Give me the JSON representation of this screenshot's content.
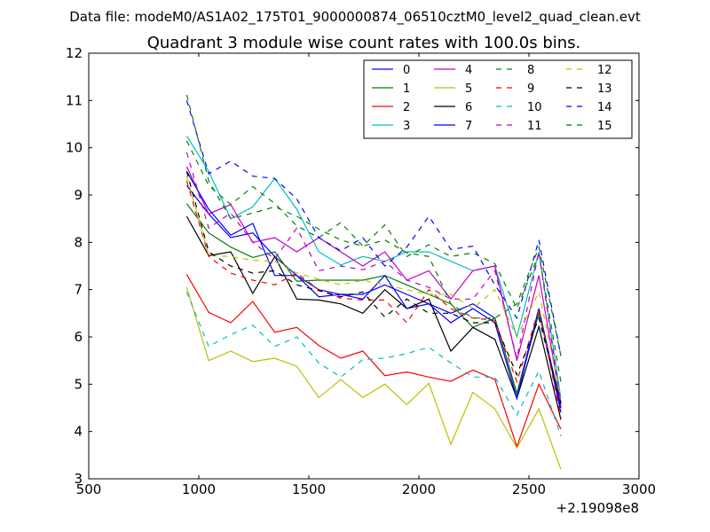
{
  "chart_data": {
    "type": "line",
    "suptitle": "Data file: modeM0/AS1A02_175T01_9000000874_06510cztM0_level2_quad_clean.evt",
    "title": "Quadrant 3 module wise count rates with 100.0s bins.",
    "xlabel": "",
    "ylabel": "",
    "x_offset_label": "+2.19098e8",
    "xlim": [
      500,
      3000
    ],
    "ylim": [
      3,
      12
    ],
    "xticks": [
      500,
      1000,
      1500,
      2000,
      2500,
      3000
    ],
    "yticks": [
      3,
      4,
      5,
      6,
      7,
      8,
      9,
      10,
      11,
      12
    ],
    "grid": false,
    "legend_position": "top-right",
    "x": [
      945,
      1045,
      1145,
      1245,
      1345,
      1445,
      1545,
      1645,
      1745,
      1845,
      1945,
      2045,
      2145,
      2245,
      2345,
      2445,
      2545,
      2645
    ],
    "series": [
      {
        "name": "0",
        "color": "#0000ff",
        "style": "solid",
        "values": [
          9.2,
          8.6,
          8.1,
          8.2,
          7.7,
          7.3,
          7.0,
          6.9,
          6.9,
          7.1,
          6.9,
          6.7,
          6.5,
          6.7,
          6.4,
          4.8,
          6.6,
          4.4
        ]
      },
      {
        "name": "1",
        "color": "#008000",
        "style": "solid",
        "values": [
          8.82,
          8.2,
          7.9,
          7.68,
          7.8,
          7.18,
          7.2,
          7.2,
          7.2,
          7.3,
          7.1,
          6.9,
          6.7,
          6.2,
          6.4,
          4.8,
          6.5,
          4.6
        ]
      },
      {
        "name": "2",
        "color": "#ff0000",
        "style": "solid",
        "values": [
          7.32,
          6.52,
          6.3,
          6.75,
          6.1,
          6.2,
          5.82,
          5.55,
          5.7,
          5.18,
          5.26,
          5.15,
          5.06,
          5.3,
          5.1,
          3.68,
          5.0,
          4.05
        ]
      },
      {
        "name": "3",
        "color": "#00bfbf",
        "style": "solid",
        "values": [
          10.25,
          9.5,
          8.5,
          8.75,
          9.35,
          8.7,
          7.8,
          7.52,
          7.7,
          7.6,
          7.8,
          7.8,
          7.6,
          7.4,
          7.5,
          6.0,
          7.8,
          4.7
        ]
      },
      {
        "name": "4",
        "color": "#bf00bf",
        "style": "solid",
        "values": [
          9.6,
          8.6,
          8.8,
          8.0,
          8.1,
          7.8,
          8.1,
          7.8,
          7.5,
          7.8,
          7.2,
          7.4,
          6.8,
          7.4,
          7.5,
          5.5,
          7.3,
          4.6
        ]
      },
      {
        "name": "5",
        "color": "#bfbf00",
        "style": "solid",
        "values": [
          7.05,
          5.5,
          5.7,
          5.48,
          5.55,
          5.38,
          4.72,
          5.1,
          4.72,
          5.0,
          4.57,
          5.02,
          3.73,
          4.83,
          4.48,
          3.65,
          4.48,
          3.2
        ]
      },
      {
        "name": "6",
        "color": "#000000",
        "style": "solid",
        "values": [
          8.55,
          7.72,
          7.8,
          6.92,
          7.7,
          6.8,
          6.78,
          6.7,
          6.5,
          7.0,
          6.6,
          6.8,
          5.7,
          6.2,
          5.95,
          4.7,
          6.22,
          4.25
        ]
      },
      {
        "name": "7",
        "color": "#0000ff",
        "style": "solid",
        "values": [
          9.5,
          8.7,
          8.15,
          8.4,
          7.3,
          7.3,
          6.85,
          6.9,
          6.8,
          7.3,
          6.6,
          6.7,
          6.3,
          6.6,
          6.3,
          4.7,
          6.6,
          4.5
        ]
      },
      {
        "name": "8",
        "color": "#008000",
        "style": "dashed",
        "values": [
          10.15,
          9.2,
          8.8,
          9.18,
          8.82,
          8.35,
          8.1,
          8.42,
          7.92,
          8.37,
          7.7,
          7.95,
          7.7,
          7.78,
          7.55,
          6.6,
          7.75,
          5.05
        ]
      },
      {
        "name": "9",
        "color": "#ff0000",
        "style": "dashed",
        "values": [
          9.3,
          7.7,
          7.35,
          7.2,
          7.1,
          7.35,
          7.0,
          6.82,
          6.78,
          6.78,
          6.3,
          7.0,
          6.6,
          6.4,
          6.35,
          5.05,
          6.6,
          4.3
        ]
      },
      {
        "name": "10",
        "color": "#00bfbf",
        "style": "dashed",
        "values": [
          6.95,
          5.8,
          6.05,
          6.25,
          5.8,
          6.0,
          5.45,
          5.15,
          5.52,
          5.55,
          5.65,
          5.78,
          5.45,
          5.15,
          5.15,
          4.35,
          5.28,
          3.9
        ]
      },
      {
        "name": "11",
        "color": "#bf00bf",
        "style": "dashed",
        "values": [
          9.9,
          8.3,
          8.62,
          8.0,
          7.65,
          8.3,
          7.4,
          7.5,
          7.42,
          7.6,
          7.2,
          7.05,
          6.8,
          6.8,
          7.4,
          5.55,
          7.8,
          4.55
        ]
      },
      {
        "name": "12",
        "color": "#bfbf00",
        "style": "dashed",
        "values": [
          9.4,
          7.72,
          7.7,
          7.62,
          7.6,
          7.35,
          7.22,
          7.1,
          7.2,
          7.1,
          7.0,
          6.9,
          6.9,
          6.6,
          7.0,
          6.0,
          6.95,
          4.7
        ]
      },
      {
        "name": "13",
        "color": "#000000",
        "style": "dashed",
        "values": [
          9.5,
          7.8,
          7.5,
          7.35,
          7.4,
          7.1,
          6.98,
          6.85,
          6.95,
          6.42,
          6.8,
          6.5,
          6.5,
          6.3,
          6.3,
          5.2,
          6.4,
          4.6
        ]
      },
      {
        "name": "14",
        "color": "#0000ff",
        "style": "dashed",
        "values": [
          11.0,
          9.45,
          9.72,
          9.4,
          9.35,
          8.92,
          8.1,
          7.82,
          8.1,
          7.5,
          7.9,
          8.55,
          7.85,
          7.92,
          7.1,
          6.4,
          8.05,
          5.6
        ]
      },
      {
        "name": "15",
        "color": "#008000",
        "style": "dashed",
        "values": [
          11.12,
          9.3,
          8.5,
          8.62,
          8.75,
          8.55,
          8.28,
          8.05,
          7.92,
          8.05,
          7.78,
          7.7,
          6.7,
          6.4,
          6.4,
          6.7,
          7.9,
          5.6
        ]
      }
    ]
  }
}
